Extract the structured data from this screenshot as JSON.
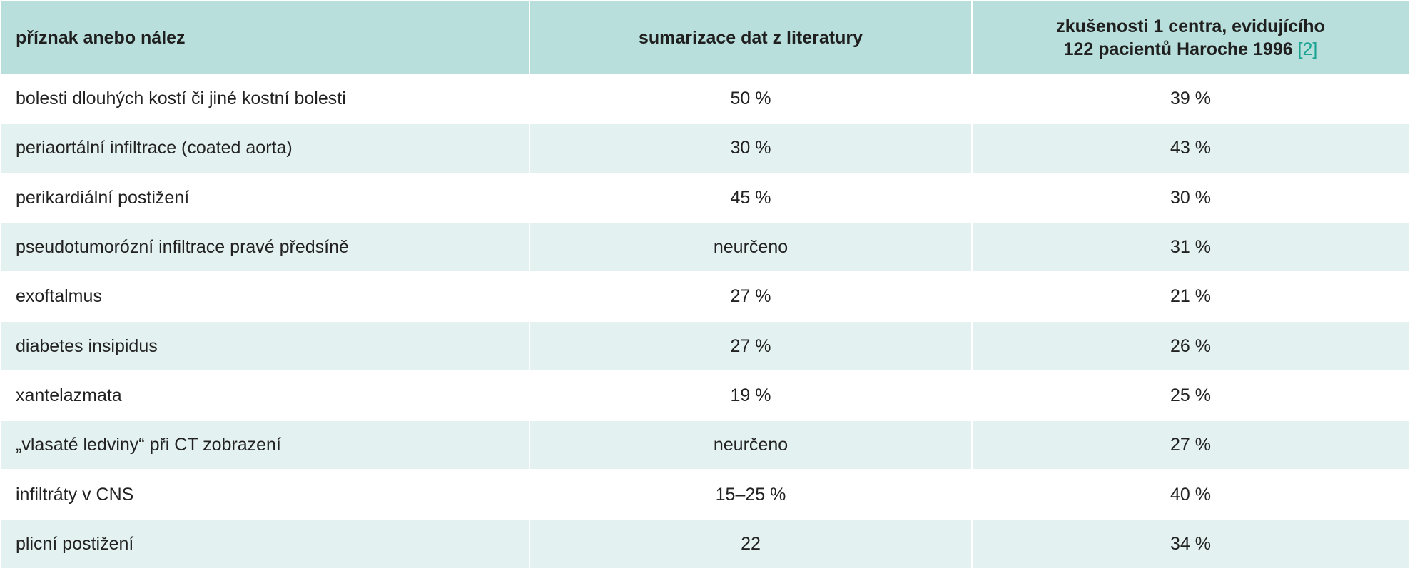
{
  "table": {
    "headers": {
      "col1": "příznak anebo nález",
      "col2": "sumarizace dat z literatury",
      "col3_line1": "zkušenosti 1 centra, evidujícího",
      "col3_line2": "122 pacientů Haroche 1996",
      "col3_ref": "[2]"
    },
    "rows": [
      {
        "symptom": "bolesti dlouhých kostí či jiné kostní bolesti",
        "literature": "50 %",
        "center": "39 %"
      },
      {
        "symptom": "periaortální infiltrace (coated aorta)",
        "literature": "30 %",
        "center": "43 %"
      },
      {
        "symptom": "perikardiální postižení",
        "literature": "45 %",
        "center": "30 %"
      },
      {
        "symptom": "pseudotumorózní infiltrace pravé předsíně",
        "literature": "neurčeno",
        "center": "31 %"
      },
      {
        "symptom": "exoftalmus",
        "literature": "27 %",
        "center": "21 %"
      },
      {
        "symptom": "diabetes insipidus",
        "literature": "27 %",
        "center": "26 %"
      },
      {
        "symptom": "xantelazmata",
        "literature": "19 %",
        "center": "25 %"
      },
      {
        "symptom": "„vlasaté ledviny“ při CT zobrazení",
        "literature": "neurčeno",
        "center": "27 %"
      },
      {
        "symptom": "infiltráty v CNS",
        "literature": "15–25 %",
        "center": "40 %"
      },
      {
        "symptom": "plicní postižení",
        "literature": "22",
        "center": "34 %"
      }
    ]
  },
  "colors": {
    "header_bg": "#b8dfdb",
    "row_alt_bg": "#e3f2f0",
    "ref_link": "#1aa393"
  }
}
